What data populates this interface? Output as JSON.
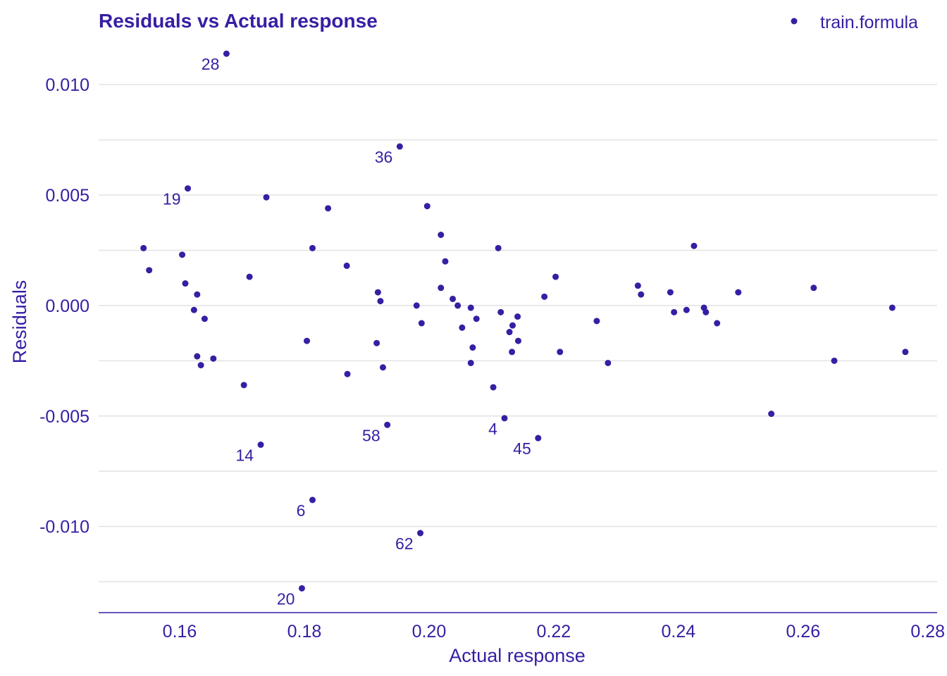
{
  "colors": {
    "accent": "#371EA3",
    "grid": "#e3e3e3",
    "background": "#ffffff"
  },
  "chart_data": {
    "type": "scatter",
    "title": "Residuals vs Actual response",
    "xlabel": "Actual response",
    "ylabel": "Residuals",
    "xlim": [
      0.147,
      0.2815
    ],
    "ylim": [
      -0.0139,
      0.0123
    ],
    "xticks": [
      0.16,
      0.18,
      0.2,
      0.22,
      0.24,
      0.26,
      0.28
    ],
    "xtick_labels": [
      "0.16",
      "0.18",
      "0.20",
      "0.22",
      "0.24",
      "0.26",
      "0.28"
    ],
    "yticks": [
      0.01,
      0.005,
      0.0,
      -0.005,
      -0.01
    ],
    "ytick_labels": [
      "0.010",
      "0.005",
      "0.000",
      "-0.005",
      "-0.010"
    ],
    "y_minor_gridlines": [
      0.0075,
      0.0025,
      -0.0025,
      -0.0075,
      -0.0125
    ],
    "grid": true,
    "legend": {
      "position": "top-right",
      "entries": [
        "train.formula"
      ]
    },
    "series": [
      {
        "name": "train.formula",
        "points": [
          {
            "x": 0.1675,
            "y": 0.0114,
            "label": "28"
          },
          {
            "x": 0.1953,
            "y": 0.0072,
            "label": "36"
          },
          {
            "x": 0.1613,
            "y": 0.0053,
            "label": "19"
          },
          {
            "x": 0.1739,
            "y": 0.0049
          },
          {
            "x": 0.1838,
            "y": 0.0044
          },
          {
            "x": 0.1997,
            "y": 0.0045
          },
          {
            "x": 0.2019,
            "y": 0.0032
          },
          {
            "x": 0.1542,
            "y": 0.0026
          },
          {
            "x": 0.1813,
            "y": 0.0026
          },
          {
            "x": 0.2111,
            "y": 0.0026
          },
          {
            "x": 0.2425,
            "y": 0.0027
          },
          {
            "x": 0.1604,
            "y": 0.0023
          },
          {
            "x": 0.1551,
            "y": 0.0016
          },
          {
            "x": 0.1868,
            "y": 0.0018
          },
          {
            "x": 0.2026,
            "y": 0.002
          },
          {
            "x": 0.1712,
            "y": 0.0013
          },
          {
            "x": 0.2203,
            "y": 0.0013
          },
          {
            "x": 0.1609,
            "y": 0.001
          },
          {
            "x": 0.1628,
            "y": 0.0005
          },
          {
            "x": 0.1918,
            "y": 0.0006
          },
          {
            "x": 0.2019,
            "y": 0.0008
          },
          {
            "x": 0.2335,
            "y": 0.0009
          },
          {
            "x": 0.234,
            "y": 0.0005
          },
          {
            "x": 0.2387,
            "y": 0.0006
          },
          {
            "x": 0.2496,
            "y": 0.0006
          },
          {
            "x": 0.2617,
            "y": 0.0008
          },
          {
            "x": 0.2185,
            "y": 0.0004
          },
          {
            "x": 0.1922,
            "y": 0.0002
          },
          {
            "x": 0.2038,
            "y": 0.0003
          },
          {
            "x": 0.198,
            "y": 0.0
          },
          {
            "x": 0.2046,
            "y": 0.0
          },
          {
            "x": 0.2067,
            "y": -0.0001
          },
          {
            "x": 0.2743,
            "y": -0.0001
          },
          {
            "x": 0.1623,
            "y": -0.0002
          },
          {
            "x": 0.2115,
            "y": -0.0003
          },
          {
            "x": 0.2393,
            "y": -0.0003
          },
          {
            "x": 0.2413,
            "y": -0.0002
          },
          {
            "x": 0.2441,
            "y": -0.0001
          },
          {
            "x": 0.2444,
            "y": -0.0003
          },
          {
            "x": 0.164,
            "y": -0.0006
          },
          {
            "x": 0.2076,
            "y": -0.0006
          },
          {
            "x": 0.2142,
            "y": -0.0005
          },
          {
            "x": 0.1988,
            "y": -0.0008
          },
          {
            "x": 0.2053,
            "y": -0.001
          },
          {
            "x": 0.2134,
            "y": -0.0009
          },
          {
            "x": 0.2269,
            "y": -0.0007
          },
          {
            "x": 0.2462,
            "y": -0.0008
          },
          {
            "x": 0.2129,
            "y": -0.0012
          },
          {
            "x": 0.1804,
            "y": -0.0016
          },
          {
            "x": 0.1916,
            "y": -0.0017
          },
          {
            "x": 0.2143,
            "y": -0.0016
          },
          {
            "x": 0.207,
            "y": -0.0019
          },
          {
            "x": 0.2133,
            "y": -0.0021
          },
          {
            "x": 0.221,
            "y": -0.0021
          },
          {
            "x": 0.2764,
            "y": -0.0021
          },
          {
            "x": 0.1628,
            "y": -0.0023
          },
          {
            "x": 0.1654,
            "y": -0.0024
          },
          {
            "x": 0.1634,
            "y": -0.0027
          },
          {
            "x": 0.2067,
            "y": -0.0026
          },
          {
            "x": 0.2287,
            "y": -0.0026
          },
          {
            "x": 0.265,
            "y": -0.0025
          },
          {
            "x": 0.1926,
            "y": -0.0028
          },
          {
            "x": 0.1869,
            "y": -0.0031
          },
          {
            "x": 0.1703,
            "y": -0.0036
          },
          {
            "x": 0.2103,
            "y": -0.0037
          },
          {
            "x": 0.2549,
            "y": -0.0049
          },
          {
            "x": 0.2121,
            "y": -0.0051,
            "label": "4"
          },
          {
            "x": 0.1933,
            "y": -0.0054,
            "label": "58"
          },
          {
            "x": 0.2175,
            "y": -0.006,
            "label": "45"
          },
          {
            "x": 0.173,
            "y": -0.0063,
            "label": "14"
          },
          {
            "x": 0.1813,
            "y": -0.0088,
            "label": "6"
          },
          {
            "x": 0.1986,
            "y": -0.0103,
            "label": "62"
          },
          {
            "x": 0.1796,
            "y": -0.0128,
            "label": "20"
          }
        ]
      }
    ]
  }
}
